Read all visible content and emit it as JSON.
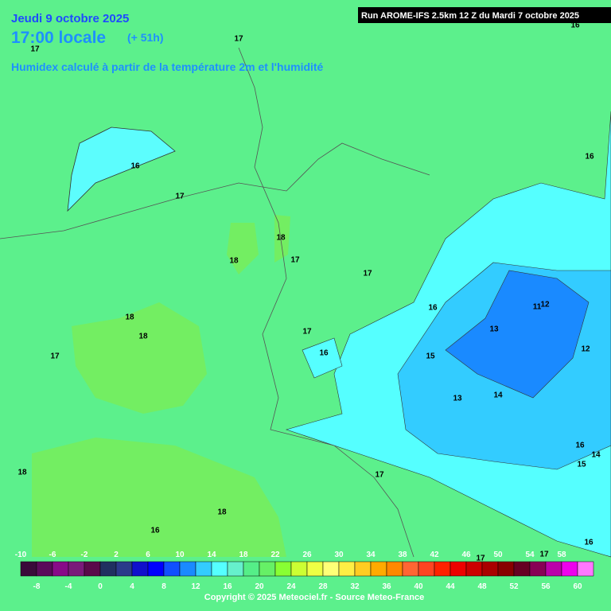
{
  "header": {
    "date": "Jeudi 9 octobre 2025",
    "time": "17:00 locale",
    "lead": "(+ 51h)",
    "description": "Humidex calculé à partir de la température 2m et l'humidité",
    "run": "Run AROME-IFS 2.5km 12 Z du Mardi 7 octobre 2025"
  },
  "contour_labels": [
    16,
    17,
    17,
    16,
    17,
    18,
    18,
    17,
    17,
    18,
    18,
    17,
    17,
    16,
    16,
    16,
    15,
    11,
    12,
    13,
    12,
    13,
    14,
    16,
    15,
    14,
    17,
    17,
    18,
    18,
    16,
    16,
    17
  ],
  "scale": {
    "upper_labels": [
      -10,
      -6,
      -2,
      2,
      6,
      10,
      14,
      18,
      22,
      26,
      30,
      34,
      38,
      42,
      46,
      50,
      54,
      58
    ],
    "lower_labels": [
      -8,
      -4,
      0,
      4,
      8,
      12,
      16,
      20,
      24,
      28,
      32,
      36,
      40,
      44,
      48,
      52,
      56,
      60
    ],
    "colors": [
      "#3a0a3a",
      "#5a0a5a",
      "#880a88",
      "#7a1a7a",
      "#5a0a4a",
      "#203060",
      "#2a3a8a",
      "#1010cc",
      "#0000ff",
      "#1050ff",
      "#1a8aff",
      "#33ccff",
      "#55ffff",
      "#66f0cc",
      "#55ee88",
      "#66f066",
      "#88ff33",
      "#ccff33",
      "#eeff44",
      "#ffff77",
      "#ffee44",
      "#ffcc22",
      "#ffaa00",
      "#ff8800",
      "#ff6633",
      "#ff4422",
      "#ff2200",
      "#ee0000",
      "#cc0000",
      "#aa0000",
      "#880000",
      "#660022",
      "#880055",
      "#bb00aa",
      "#ee00ee",
      "#ff77ff"
    ]
  },
  "copyright": "Copyright © 2025 Meteociel.fr - Source Meteo-France"
}
